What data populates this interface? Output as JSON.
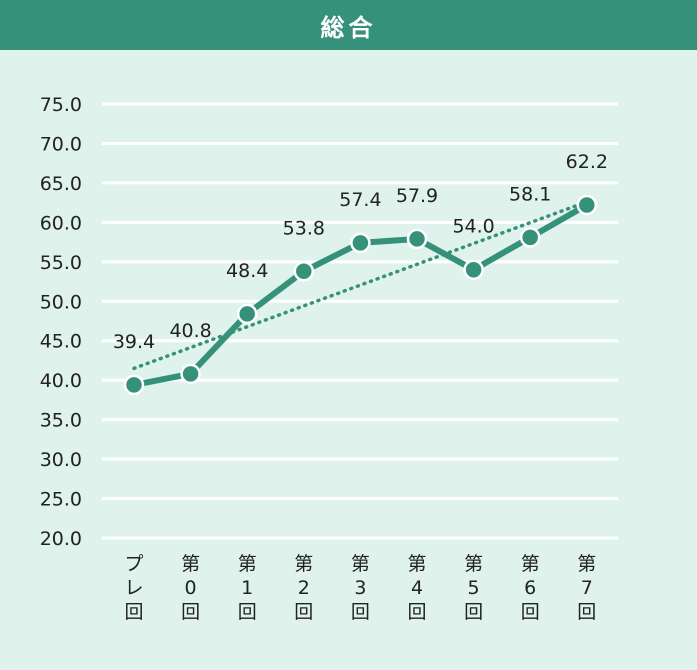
{
  "header": {
    "title": "総合"
  },
  "colors": {
    "header_bg": "#35917a",
    "background": "#dff2ec",
    "series": "#35917a",
    "trend": "#35917a",
    "grid": "#ffffff"
  },
  "chart_data": {
    "type": "line",
    "title": "総合",
    "xlabel": "",
    "ylabel": "",
    "ylim": [
      20,
      75
    ],
    "y_ticks": [
      "75.0",
      "70.0",
      "65.0",
      "60.0",
      "55.0",
      "50.0",
      "45.0",
      "40.0",
      "35.0",
      "30.0",
      "25.0",
      "20.0"
    ],
    "categories": [
      "プレ回",
      "第0回",
      "第1回",
      "第2回",
      "第3回",
      "第4回",
      "第5回",
      "第6回",
      "第7回"
    ],
    "series": [
      {
        "values": [
          39.4,
          40.8,
          48.4,
          53.8,
          57.4,
          57.9,
          54.0,
          58.1,
          62.2
        ],
        "labels": [
          "39.4",
          "40.8",
          "48.4",
          "53.8",
          "57.4",
          "57.9",
          "54.0",
          "58.1",
          "62.2"
        ]
      }
    ],
    "trendline": {
      "style": "dotted",
      "start": 41.5,
      "end": 62.6
    },
    "grid": true,
    "legend": "none"
  }
}
